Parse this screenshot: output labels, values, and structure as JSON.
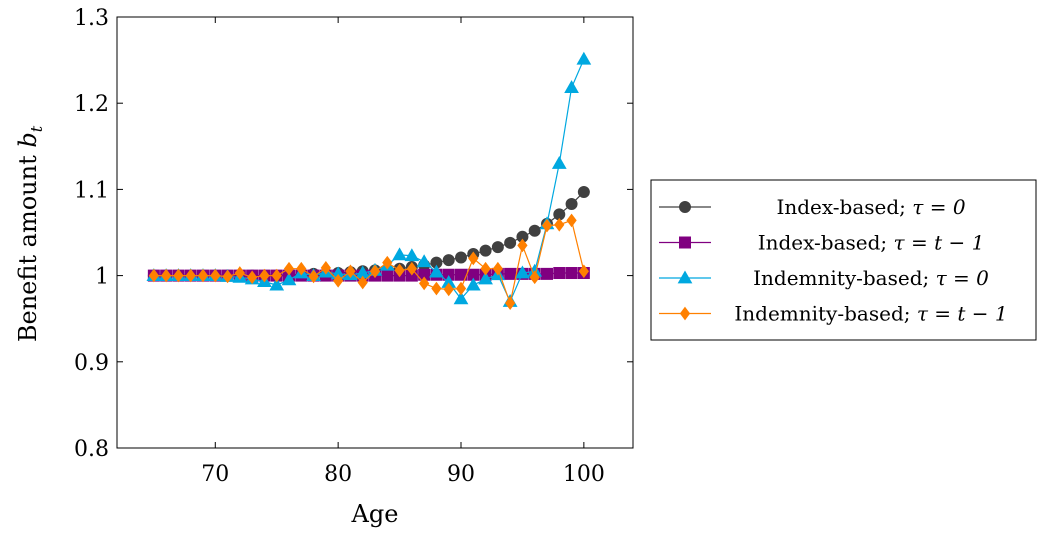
{
  "chart_data": {
    "type": "line",
    "xlabel": "Age",
    "ylabel": "Benefit amount b_t",
    "ylabel_main": "Benefit amount ",
    "ylabel_sub": "b",
    "ylabel_subscript": "t",
    "xlim": [
      62,
      104
    ],
    "ylim": [
      0.8,
      1.3
    ],
    "xticks": [
      70,
      80,
      90,
      100
    ],
    "yticks": [
      0.8,
      0.9,
      1,
      1.1,
      1.2,
      1.3
    ],
    "ytick_labels": [
      "0.8",
      "0.9",
      "1",
      "1.1",
      "1.2",
      "1.3"
    ],
    "xtick_labels": [
      "70",
      "80",
      "90",
      "100"
    ],
    "grid": false,
    "legend_position": "outside-right",
    "x": [
      65,
      66,
      67,
      68,
      69,
      70,
      71,
      72,
      73,
      74,
      75,
      76,
      77,
      78,
      79,
      80,
      81,
      82,
      83,
      84,
      85,
      86,
      87,
      88,
      89,
      90,
      91,
      92,
      93,
      94,
      95,
      96,
      97,
      98,
      99,
      100
    ],
    "series": [
      {
        "name": "Index-based; τ = 0",
        "color": "#404040",
        "marker": "circle",
        "values": [
          1.0,
          1.0,
          1.0,
          1.0,
          1.0,
          1.0,
          1.0,
          1.0,
          1.0,
          1.0,
          1.0,
          1.001,
          1.001,
          1.002,
          1.002,
          1.003,
          1.004,
          1.005,
          1.006,
          1.007,
          1.008,
          1.01,
          1.012,
          1.015,
          1.018,
          1.021,
          1.025,
          1.029,
          1.033,
          1.038,
          1.045,
          1.052,
          1.06,
          1.071,
          1.083,
          1.097
        ]
      },
      {
        "name": "Index-based; τ = t − 1",
        "color": "#800080",
        "marker": "square",
        "values": [
          1.0,
          1.0,
          1.0,
          1.0,
          1.0,
          1.0,
          1.0,
          1.0,
          1.0,
          1.0,
          1.0,
          1.0,
          1.0,
          1.0,
          1.0,
          1.0,
          1.0,
          1.0,
          1.0,
          1.0,
          1.0,
          1.0,
          1.001,
          1.001,
          1.001,
          1.001,
          1.001,
          1.001,
          1.002,
          1.002,
          1.002,
          1.002,
          1.002,
          1.003,
          1.003,
          1.003
        ]
      },
      {
        "name": "Indemnity-based; τ = 0",
        "color": "#00a8e0",
        "marker": "triangle",
        "values": [
          1.0,
          1.0,
          1.0,
          1.0,
          1.0,
          1.0,
          0.999,
          0.998,
          0.996,
          0.993,
          0.989,
          0.995,
          1.003,
          1.0,
          1.004,
          1.002,
          1.001,
          1.003,
          1.006,
          1.012,
          1.024,
          1.023,
          1.016,
          1.004,
          0.992,
          0.973,
          0.989,
          0.996,
          1.001,
          0.97,
          1.003,
          1.005,
          1.06,
          1.13,
          1.218,
          1.251
        ]
      },
      {
        "name": "Indemnity-based; τ = t − 1",
        "color": "#ff8000",
        "marker": "diamond",
        "values": [
          1.0,
          1.0,
          1.0,
          1.0,
          1.0,
          1.0,
          0.999,
          1.003,
          0.998,
          1.0,
          1.0,
          1.008,
          1.008,
          0.999,
          1.009,
          0.994,
          1.005,
          0.992,
          1.005,
          1.015,
          1.006,
          1.008,
          0.991,
          0.985,
          0.984,
          0.985,
          1.02,
          1.008,
          1.008,
          0.968,
          1.035,
          0.998,
          1.058,
          1.059,
          1.064,
          1.005
        ]
      }
    ],
    "legend_entries": [
      {
        "label": "Index-based; ",
        "math": "τ = 0"
      },
      {
        "label": "Index-based; ",
        "math": "τ = t − 1"
      },
      {
        "label": "Indemnity-based; ",
        "math": "τ = 0"
      },
      {
        "label": "Indemnity-based; ",
        "math": "τ = t − 1"
      }
    ]
  }
}
